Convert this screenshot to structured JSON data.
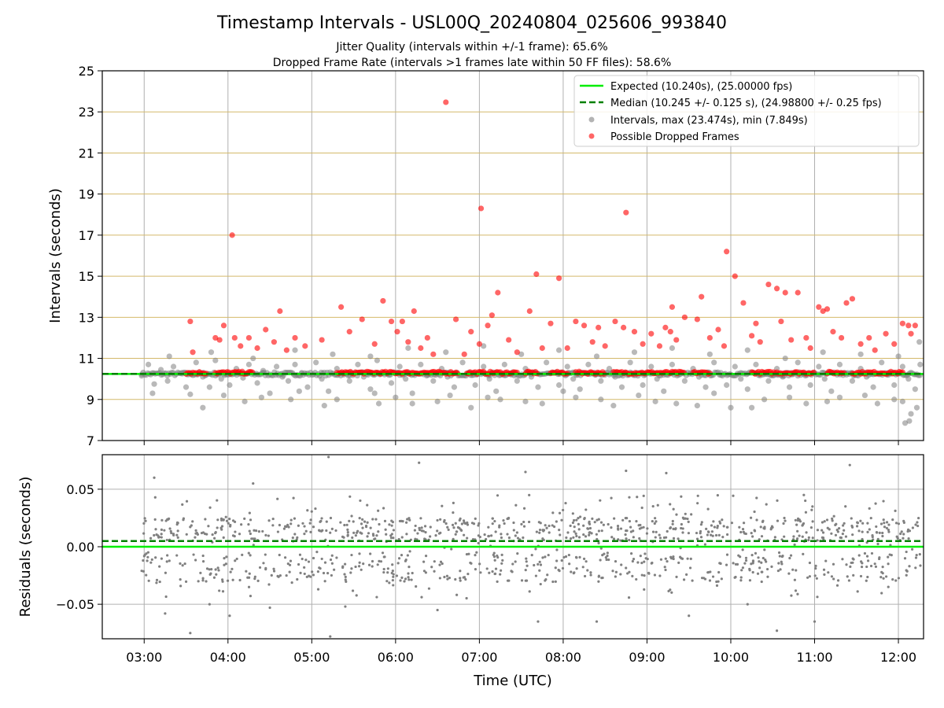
{
  "chart_data": [
    {
      "type": "scatter",
      "title": "Timestamp Intervals - USL00Q_20240804_025606_993840",
      "subtitle_lines": [
        "Jitter Quality (intervals within +/-1 frame): 65.6%",
        "Dropped Frame Rate (intervals >1 frames late within 50 FF files): 58.6%"
      ],
      "xlabel": "",
      "ylabel": "Intervals (seconds)",
      "x_unit": "hours UTC",
      "xlim": [
        2.5,
        12.3
      ],
      "ylim": [
        7,
        25
      ],
      "yticks": [
        7,
        9,
        11,
        13,
        15,
        17,
        19,
        21,
        23,
        25
      ],
      "ytick_labels": [
        "7",
        "9",
        "11",
        "13",
        "15",
        "17",
        "19",
        "21",
        "23",
        "25"
      ],
      "grid": "x: gray verticals; y: goldenrod horizontals",
      "legend_position": "top-right",
      "legend": [
        "Expected (10.240s), (25.00000 fps)",
        "Median (10.245 +/- 0.125 s), (24.98800 +/- 0.25 fps)",
        "Intervals, max (23.474s), min (7.849s)",
        "Possible Dropped Frames"
      ],
      "expected_line": 10.24,
      "median_line": 10.245,
      "series": [
        {
          "name": "Intervals, max (23.474s), min (7.849s)",
          "color": "#808080",
          "x": [
            2.97,
            3.05,
            3.12,
            3.2,
            3.28,
            3.35,
            3.45,
            3.55,
            3.62,
            3.7,
            3.78,
            3.85,
            3.92,
            4.02,
            4.1,
            4.18,
            4.25,
            4.35,
            4.42,
            4.5,
            4.58,
            4.65,
            4.72,
            4.8,
            4.88,
            4.95,
            5.05,
            5.12,
            5.2,
            5.3,
            5.38,
            5.45,
            5.55,
            5.62,
            5.7,
            5.78,
            5.85,
            5.95,
            6.05,
            6.12,
            6.2,
            6.3,
            6.38,
            6.45,
            6.55,
            6.62,
            6.7,
            6.8,
            6.88,
            6.95,
            7.05,
            7.12,
            7.2,
            7.3,
            7.38,
            7.45,
            7.55,
            7.62,
            7.7,
            7.8,
            7.88,
            7.95,
            8.05,
            8.12,
            8.2,
            8.3,
            8.38,
            8.45,
            8.55,
            8.62,
            8.7,
            8.8,
            8.88,
            8.95,
            9.05,
            9.12,
            9.2,
            9.3,
            9.38,
            9.45,
            9.55,
            9.62,
            9.7,
            9.8,
            9.88,
            9.95,
            10.05,
            10.12,
            10.2,
            10.3,
            10.38,
            10.45,
            10.55,
            10.62,
            10.7,
            10.8,
            10.88,
            10.95,
            11.05,
            11.12,
            11.2,
            11.3,
            11.38,
            11.45,
            11.55,
            11.62,
            11.7,
            11.8,
            11.88,
            11.95,
            12.05,
            12.12,
            12.2,
            12.26,
            3.1,
            3.5,
            3.95,
            4.4,
            4.85,
            5.3,
            5.75,
            6.2,
            6.65,
            7.1,
            7.55,
            8.0,
            8.45,
            8.9,
            9.35,
            9.8,
            10.25,
            10.7,
            11.15,
            11.6,
            12.05,
            3.3,
            3.8,
            4.3,
            4.8,
            5.25,
            5.7,
            6.15,
            6.6,
            7.05,
            7.5,
            7.95,
            8.4,
            8.85,
            9.3,
            9.75,
            10.2,
            10.65,
            11.1,
            11.55,
            12.0,
            3.7,
            4.2,
            4.75,
            5.15,
            5.8,
            6.0,
            6.5,
            6.9,
            7.25,
            7.75,
            8.15,
            8.6,
            9.1,
            9.6,
            10.0,
            10.4,
            10.9,
            11.3,
            11.75,
            12.15,
            12.08,
            12.13,
            12.22,
            11.95,
            12.25
          ],
          "y": [
            10.22,
            10.7,
            9.75,
            10.45,
            9.9,
            10.6,
            10.3,
            9.25,
            10.8,
            10.1,
            9.6,
            10.9,
            10.0,
            9.7,
            10.5,
            10.05,
            10.7,
            9.8,
            10.4,
            9.3,
            10.6,
            10.1,
            9.9,
            10.7,
            10.3,
            9.6,
            10.8,
            10.0,
            9.4,
            10.5,
            10.2,
            9.9,
            10.7,
            10.1,
            9.5,
            10.9,
            10.3,
            9.8,
            10.6,
            10.0,
            9.3,
            10.7,
            10.2,
            9.9,
            10.5,
            10.1,
            9.6,
            10.8,
            10.3,
            9.7,
            10.6,
            10.0,
            9.4,
            10.7,
            10.2,
            9.9,
            10.5,
            10.1,
            9.6,
            10.8,
            10.3,
            9.7,
            10.6,
            10.0,
            9.5,
            10.7,
            10.2,
            9.9,
            10.5,
            10.1,
            9.6,
            10.8,
            10.3,
            9.7,
            10.6,
            10.0,
            9.4,
            10.7,
            10.2,
            9.9,
            10.5,
            10.1,
            9.6,
            10.8,
            10.3,
            9.7,
            10.6,
            10.0,
            9.5,
            10.7,
            10.2,
            9.9,
            10.5,
            10.1,
            9.6,
            10.8,
            10.3,
            9.7,
            10.6,
            10.0,
            9.4,
            10.7,
            10.2,
            9.9,
            10.5,
            10.1,
            9.6,
            10.8,
            10.3,
            9.7,
            10.6,
            10.0,
            9.5,
            10.7,
            9.3,
            9.6,
            9.2,
            9.1,
            9.4,
            9.0,
            9.3,
            8.8,
            9.2,
            9.1,
            8.9,
            9.4,
            9.0,
            9.2,
            8.8,
            9.3,
            8.6,
            9.1,
            8.9,
            9.2,
            8.9,
            11.1,
            11.3,
            11.0,
            11.4,
            11.2,
            11.1,
            11.5,
            11.3,
            11.6,
            11.2,
            11.4,
            11.1,
            11.3,
            11.5,
            11.2,
            11.4,
            11.0,
            11.3,
            11.2,
            11.1,
            8.6,
            8.9,
            9.0,
            8.7,
            8.8,
            9.1,
            8.9,
            8.6,
            9.0,
            8.8,
            9.1,
            8.7,
            8.9,
            8.7,
            8.6,
            9.0,
            8.8,
            9.1,
            8.8,
            8.3,
            7.85,
            7.95,
            8.6,
            9.0,
            11.8
          ]
        },
        {
          "name": "Possible Dropped Frames",
          "color": "#ff0000",
          "x": [
            3.55,
            3.58,
            3.85,
            3.9,
            3.95,
            4.05,
            4.08,
            4.15,
            4.25,
            4.35,
            4.45,
            4.55,
            4.62,
            4.7,
            4.8,
            4.92,
            5.12,
            5.35,
            5.45,
            5.6,
            5.75,
            5.85,
            5.95,
            6.02,
            6.08,
            6.15,
            6.22,
            6.3,
            6.38,
            6.45,
            6.6,
            6.72,
            6.82,
            6.9,
            7.0,
            7.02,
            7.1,
            7.15,
            7.22,
            7.35,
            7.45,
            7.6,
            7.68,
            7.75,
            7.85,
            7.95,
            8.05,
            8.15,
            8.25,
            8.35,
            8.42,
            8.5,
            8.62,
            8.72,
            8.75,
            8.85,
            8.95,
            9.05,
            9.15,
            9.22,
            9.28,
            9.3,
            9.35,
            9.45,
            9.6,
            9.65,
            9.75,
            9.85,
            9.92,
            9.95,
            10.05,
            10.15,
            10.25,
            10.3,
            10.35,
            10.45,
            10.55,
            10.6,
            10.65,
            10.72,
            10.8,
            10.9,
            10.95,
            11.05,
            11.1,
            11.15,
            11.22,
            11.32,
            11.38,
            11.45,
            11.55,
            11.65,
            11.72,
            11.85,
            11.95,
            12.05,
            12.12,
            12.15,
            12.2
          ],
          "y": [
            12.8,
            11.3,
            12.0,
            11.9,
            12.6,
            17.0,
            12.0,
            11.6,
            12.0,
            11.5,
            12.4,
            11.8,
            13.3,
            11.4,
            12.0,
            11.6,
            11.9,
            13.5,
            12.3,
            12.9,
            11.7,
            13.8,
            12.8,
            12.3,
            12.8,
            11.8,
            13.3,
            11.5,
            12.0,
            11.2,
            23.47,
            12.9,
            11.2,
            12.3,
            11.7,
            18.3,
            12.6,
            13.1,
            14.2,
            11.9,
            11.3,
            13.3,
            15.1,
            11.5,
            12.7,
            14.9,
            11.5,
            12.8,
            12.6,
            11.8,
            12.5,
            11.6,
            12.8,
            12.5,
            18.1,
            12.3,
            11.7,
            12.2,
            11.6,
            12.5,
            12.3,
            13.5,
            11.9,
            13.0,
            12.9,
            14.0,
            12.0,
            12.4,
            11.6,
            16.2,
            15.0,
            13.7,
            12.1,
            12.7,
            11.8,
            14.6,
            14.4,
            12.8,
            14.2,
            11.9,
            14.2,
            12.0,
            11.5,
            13.5,
            13.3,
            13.4,
            12.3,
            12.0,
            13.7,
            13.9,
            11.7,
            12.0,
            11.4,
            12.2,
            11.7,
            12.7,
            12.6,
            12.2,
            12.6
          ]
        }
      ]
    },
    {
      "type": "scatter",
      "title": "",
      "xlabel": "Time (UTC)",
      "ylabel": "Residuals (seconds)",
      "x_unit": "hours UTC",
      "xlim": [
        2.5,
        12.3
      ],
      "ylim": [
        -0.08,
        0.08
      ],
      "yticks": [
        -0.05,
        0.0,
        0.05
      ],
      "ytick_labels": [
        "−0.05",
        "0.00",
        "0.05"
      ],
      "xticks": [
        3,
        4,
        5,
        6,
        7,
        8,
        9,
        10,
        11,
        12
      ],
      "xtick_labels": [
        "03:00",
        "04:00",
        "05:00",
        "06:00",
        "07:00",
        "08:00",
        "09:00",
        "10:00",
        "11:00",
        "12:00"
      ],
      "grid": "on",
      "expected_line": 0.0,
      "median_line": 0.005,
      "series": [
        {
          "name": "",
          "color": "#808080",
          "point_count": 1200,
          "band": [
            -0.03,
            0.045
          ],
          "outliers_x": [
            3.12,
            3.55,
            4.02,
            4.3,
            5.2,
            5.22,
            6.28,
            7.55,
            8.75,
            9.23,
            10.55,
            11.42,
            3.25,
            3.78,
            4.5,
            5.4,
            6.5,
            7.7,
            8.4,
            9.5,
            10.2,
            11.0
          ],
          "outliers_y": [
            0.06,
            -0.075,
            -0.06,
            0.055,
            0.078,
            -0.078,
            0.073,
            0.065,
            0.066,
            0.064,
            -0.073,
            0.071,
            -0.058,
            -0.05,
            -0.053,
            -0.052,
            -0.055,
            -0.065,
            -0.065,
            -0.06,
            -0.05,
            -0.065
          ]
        }
      ]
    }
  ]
}
